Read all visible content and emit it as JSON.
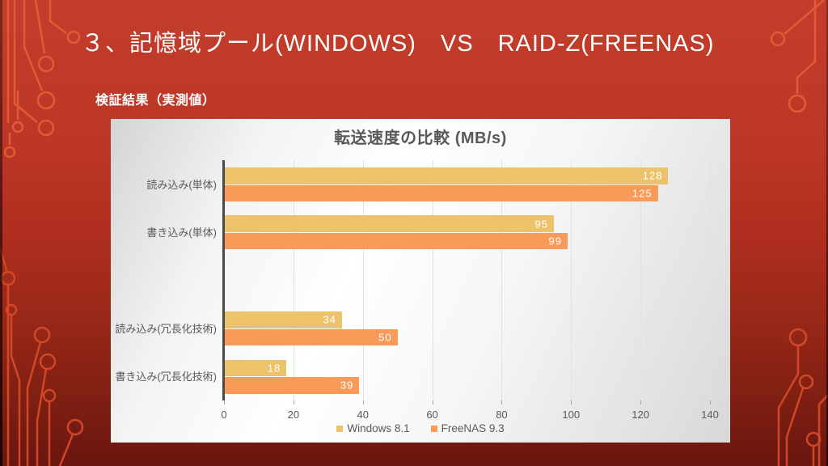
{
  "slide": {
    "title": "３、記憶域プール(WINDOWS)　VS　RAID-Z(FREENAS)",
    "subtitle": "検証結果（実測値）"
  },
  "colors": {
    "background_top": "#c33d2c",
    "background_bottom": "#691610",
    "circuit_top": "#e65b36",
    "circuit_bottom": "#d54a28",
    "series1": "#ecc26a",
    "series2": "#fa9a58",
    "chart_text": "#595959",
    "axis_line": "#4a4a4a",
    "value_label": "#ffffff"
  },
  "chart_data": {
    "type": "bar",
    "orientation": "horizontal",
    "title": "転送速度の比較 (MB/s)",
    "categories": [
      "読み込み(単体)",
      "書き込み(単体)",
      "読み込み(冗長化技術)",
      "書き込み(冗長化技術)"
    ],
    "series": [
      {
        "name": "Windows 8.1",
        "color": "#ecc26a",
        "values": [
          128,
          95,
          34,
          18
        ]
      },
      {
        "name": "FreeNAS 9.3",
        "color": "#fa9a58",
        "values": [
          125,
          99,
          50,
          39
        ]
      }
    ],
    "x_ticks": [
      0,
      20,
      40,
      60,
      80,
      100,
      120,
      140
    ],
    "xlim": [
      0,
      140
    ],
    "grid": true,
    "legend_position": "bottom",
    "gap_after_category_index": 1,
    "value_labels": "inside-end"
  }
}
